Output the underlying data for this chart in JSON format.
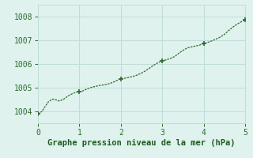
{
  "x": [
    0,
    0.1,
    0.15,
    0.25,
    0.35,
    0.45,
    0.5,
    0.55,
    0.6,
    0.65,
    0.7,
    0.75,
    0.8,
    0.85,
    0.9,
    0.95,
    1.0,
    1.05,
    1.1,
    1.2,
    1.3,
    1.4,
    1.5,
    1.6,
    1.7,
    1.8,
    1.9,
    2.0,
    2.1,
    2.2,
    2.3,
    2.4,
    2.5,
    2.6,
    2.7,
    2.8,
    2.9,
    3.0,
    3.1,
    3.2,
    3.3,
    3.4,
    3.5,
    3.6,
    3.7,
    3.8,
    3.9,
    4.0,
    4.1,
    4.2,
    4.3,
    4.4,
    4.5,
    4.6,
    4.7,
    4.8,
    4.9,
    5.0
  ],
  "y": [
    1003.9,
    1004.0,
    1004.15,
    1004.4,
    1004.52,
    1004.48,
    1004.44,
    1004.46,
    1004.5,
    1004.55,
    1004.62,
    1004.68,
    1004.72,
    1004.76,
    1004.8,
    1004.82,
    1004.82,
    1004.84,
    1004.88,
    1004.96,
    1005.02,
    1005.06,
    1005.1,
    1005.12,
    1005.16,
    1005.22,
    1005.3,
    1005.38,
    1005.4,
    1005.44,
    1005.48,
    1005.54,
    1005.62,
    1005.72,
    1005.84,
    1005.96,
    1006.06,
    1006.14,
    1006.18,
    1006.24,
    1006.32,
    1006.46,
    1006.58,
    1006.68,
    1006.72,
    1006.76,
    1006.8,
    1006.86,
    1006.92,
    1006.98,
    1007.06,
    1007.14,
    1007.26,
    1007.42,
    1007.56,
    1007.68,
    1007.78,
    1007.88
  ],
  "marker_x": [
    0,
    1.0,
    2.0,
    3.0,
    4.0,
    5.0
  ],
  "marker_y": [
    1003.9,
    1004.82,
    1005.38,
    1006.14,
    1006.86,
    1007.88
  ],
  "line_color": "#2d6b2d",
  "marker_color": "#2d6b2d",
  "bg_color": "#dff2ee",
  "grid_color": "#c0ddd7",
  "xlabel": "Graphe pression niveau de la mer (hPa)",
  "xlabel_color": "#1e5c1e",
  "tick_color": "#2d6b2d",
  "xlim": [
    0,
    5
  ],
  "ylim": [
    1003.5,
    1008.5
  ],
  "xticks": [
    0,
    1,
    2,
    3,
    4,
    5
  ],
  "yticks": [
    1004,
    1005,
    1006,
    1007,
    1008
  ],
  "tick_fontsize": 7,
  "xlabel_fontsize": 7.5
}
